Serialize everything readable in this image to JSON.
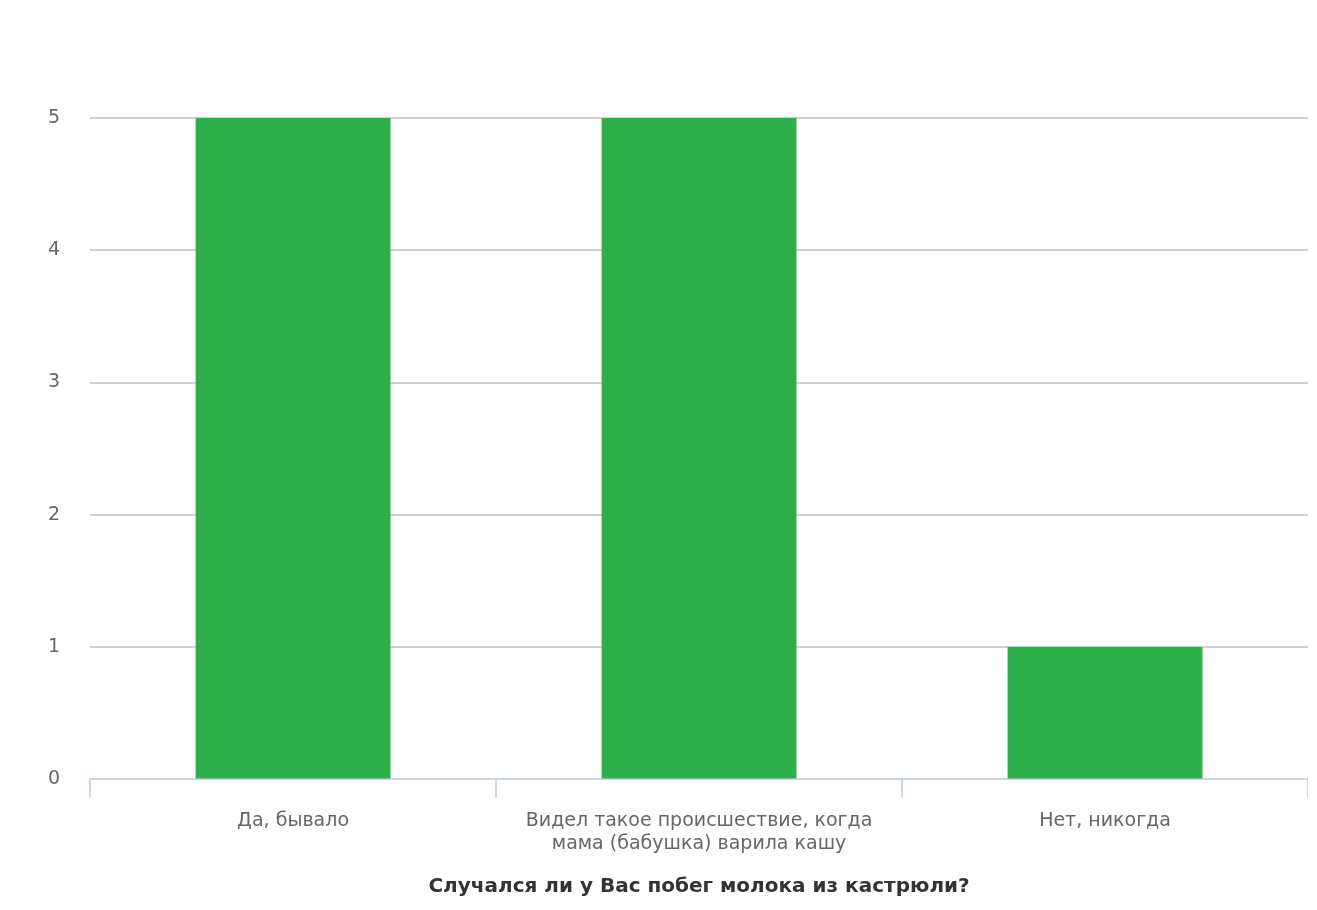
{
  "chart_data": {
    "type": "bar",
    "xlabel": "Случался ли у Вас побег молока из кастрюли?",
    "categories": [
      "Да, бывало",
      "Видел такое происшествие, когда мама (бабушка) варила кашу",
      "Нет, никогда"
    ],
    "values": [
      5,
      5,
      1
    ],
    "color": "#2db04b",
    "ylim": [
      0,
      5
    ],
    "yticks": [
      0,
      1,
      2,
      3,
      4,
      5
    ],
    "grid": "y",
    "legend": false
  }
}
